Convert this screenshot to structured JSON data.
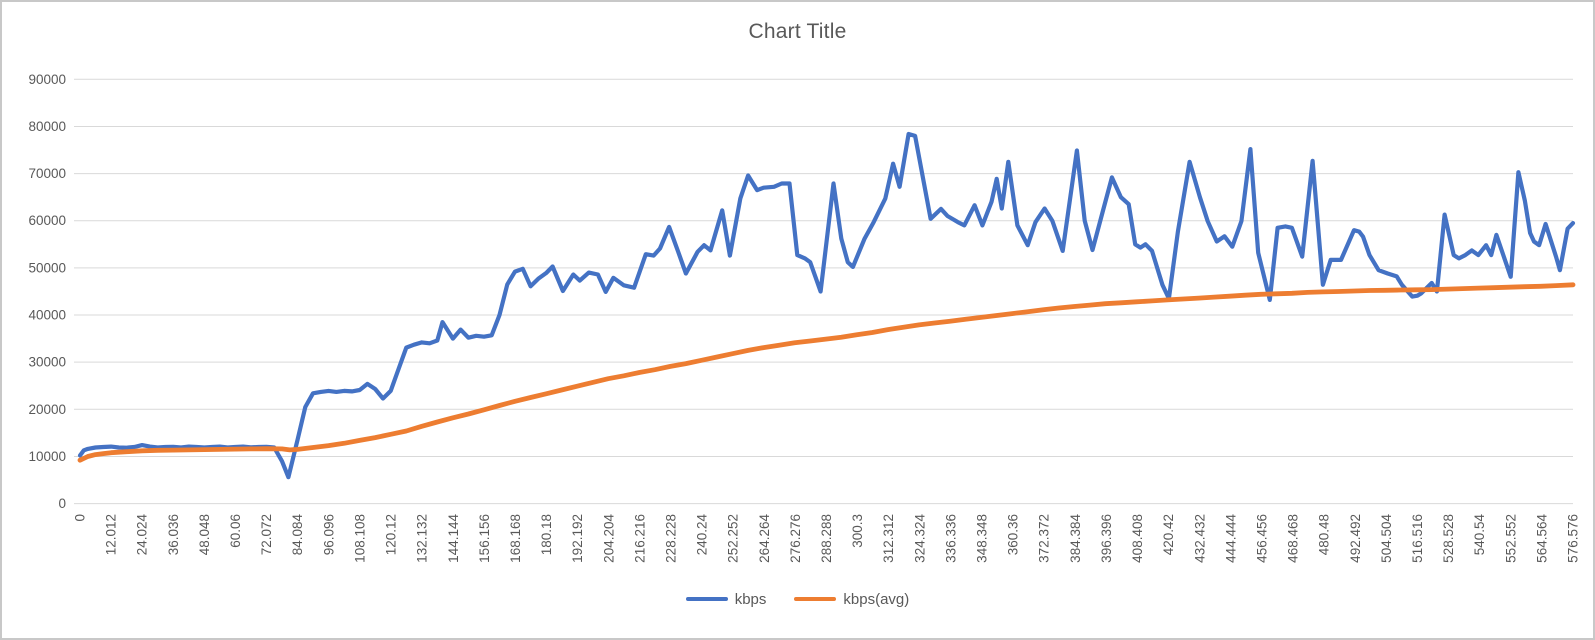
{
  "window": {
    "title": "Chart Title"
  },
  "colors": {
    "series_kbps": "#4472C4",
    "series_kbps_avg": "#ED7D31",
    "gridline": "#D9D9D9",
    "axis_text": "#595959",
    "title_text": "#595959",
    "frame_border": "#C8C8C8",
    "background": "#FFFFFF"
  },
  "chart_data": {
    "type": "line",
    "title": "Chart Title",
    "xlabel": "",
    "ylabel": "",
    "grid": "horizontal",
    "legend_position": "bottom",
    "x_range": [
      0,
      576.576
    ],
    "ylim": [
      0,
      90000
    ],
    "y_ticks": [
      0,
      10000,
      20000,
      30000,
      40000,
      50000,
      60000,
      70000,
      80000,
      90000
    ],
    "x_tick_labels": [
      "0",
      "12.012",
      "24.024",
      "36.036",
      "48.048",
      "60.06",
      "72.072",
      "84.084",
      "96.096",
      "108.108",
      "120.12",
      "132.132",
      "144.144",
      "156.156",
      "168.168",
      "180.18",
      "192.192",
      "204.204",
      "216.216",
      "228.228",
      "240.24",
      "252.252",
      "264.264",
      "276.276",
      "288.288",
      "300.3",
      "312.312",
      "324.324",
      "336.336",
      "348.348",
      "360.36",
      "372.372",
      "384.384",
      "396.396",
      "408.408",
      "420.42",
      "432.432",
      "444.444",
      "456.456",
      "468.468",
      "480.48",
      "492.492",
      "504.504",
      "516.516",
      "528.528",
      "540.54",
      "552.552",
      "564.564",
      "576.576"
    ],
    "series": [
      {
        "name": "kbps",
        "color": "#4472C4",
        "points": [
          [
            0,
            10200
          ],
          [
            1.5,
            11300
          ],
          [
            3,
            11600
          ],
          [
            6,
            11900
          ],
          [
            9,
            12000
          ],
          [
            12,
            12100
          ],
          [
            15,
            11900
          ],
          [
            18,
            11850
          ],
          [
            21,
            12000
          ],
          [
            24,
            12400
          ],
          [
            27,
            12100
          ],
          [
            30,
            11900
          ],
          [
            33,
            12000
          ],
          [
            36,
            12050
          ],
          [
            39,
            11900
          ],
          [
            42,
            12100
          ],
          [
            45,
            12000
          ],
          [
            48,
            11900
          ],
          [
            51,
            12000
          ],
          [
            54,
            12100
          ],
          [
            57,
            11900
          ],
          [
            60,
            12000
          ],
          [
            63,
            12100
          ],
          [
            66,
            11950
          ],
          [
            69,
            12000
          ],
          [
            72,
            12050
          ],
          [
            75,
            11900
          ],
          [
            78,
            9000
          ],
          [
            80.5,
            5600
          ],
          [
            84,
            13500
          ],
          [
            87,
            20500
          ],
          [
            90,
            23400
          ],
          [
            93,
            23700
          ],
          [
            96,
            23900
          ],
          [
            99,
            23700
          ],
          [
            102,
            23900
          ],
          [
            105,
            23800
          ],
          [
            108,
            24100
          ],
          [
            111,
            25400
          ],
          [
            114,
            24300
          ],
          [
            117,
            22300
          ],
          [
            120,
            23900
          ],
          [
            123,
            28500
          ],
          [
            126,
            33100
          ],
          [
            129,
            33700
          ],
          [
            132,
            34200
          ],
          [
            135,
            34000
          ],
          [
            138,
            34600
          ],
          [
            140,
            38500
          ],
          [
            144,
            35000
          ],
          [
            147,
            36900
          ],
          [
            150,
            35200
          ],
          [
            153,
            35600
          ],
          [
            156,
            35400
          ],
          [
            159,
            35700
          ],
          [
            162,
            40000
          ],
          [
            165,
            46500
          ],
          [
            168,
            49200
          ],
          [
            171,
            49800
          ],
          [
            174,
            46100
          ],
          [
            177,
            47700
          ],
          [
            180,
            48900
          ],
          [
            182.5,
            50300
          ],
          [
            186.5,
            45100
          ],
          [
            190.5,
            48600
          ],
          [
            193,
            47300
          ],
          [
            196.5,
            49000
          ],
          [
            200,
            48600
          ],
          [
            203,
            44900
          ],
          [
            206,
            47900
          ],
          [
            210,
            46300
          ],
          [
            214,
            45800
          ],
          [
            218.5,
            52900
          ],
          [
            221.5,
            52600
          ],
          [
            224,
            54100
          ],
          [
            227.5,
            58700
          ],
          [
            231,
            53400
          ],
          [
            234,
            48800
          ],
          [
            238.5,
            53400
          ],
          [
            241,
            54800
          ],
          [
            243.5,
            53700
          ],
          [
            248,
            62200
          ],
          [
            251,
            52600
          ],
          [
            255,
            64700
          ],
          [
            258,
            69600
          ],
          [
            261.5,
            66500
          ],
          [
            264,
            67000
          ],
          [
            268,
            67200
          ],
          [
            271,
            67900
          ],
          [
            274,
            67900
          ],
          [
            277,
            52700
          ],
          [
            280,
            52000
          ],
          [
            282,
            51200
          ],
          [
            284,
            48100
          ],
          [
            286,
            45000
          ],
          [
            291,
            67900
          ],
          [
            294,
            56200
          ],
          [
            296.5,
            51200
          ],
          [
            298.5,
            50200
          ],
          [
            303,
            56200
          ],
          [
            306.5,
            59700
          ],
          [
            311,
            64700
          ],
          [
            314,
            72100
          ],
          [
            316.5,
            67200
          ],
          [
            320,
            78400
          ],
          [
            322.5,
            78000
          ],
          [
            328.5,
            60400
          ],
          [
            332.5,
            62500
          ],
          [
            335,
            61000
          ],
          [
            339,
            59700
          ],
          [
            341.5,
            59000
          ],
          [
            345.5,
            63300
          ],
          [
            348.5,
            59000
          ],
          [
            352,
            64000
          ],
          [
            354,
            68900
          ],
          [
            356,
            62600
          ],
          [
            358.5,
            72500
          ],
          [
            362,
            59000
          ],
          [
            366,
            54800
          ],
          [
            369,
            59700
          ],
          [
            372.5,
            62600
          ],
          [
            375.5,
            60000
          ],
          [
            379.5,
            53600
          ],
          [
            385,
            74900
          ],
          [
            388,
            60000
          ],
          [
            391,
            53800
          ],
          [
            395,
            62000
          ],
          [
            398.5,
            69200
          ],
          [
            402,
            65000
          ],
          [
            405,
            63500
          ],
          [
            407.5,
            55000
          ],
          [
            409.5,
            54300
          ],
          [
            411.5,
            55000
          ],
          [
            414,
            53600
          ],
          [
            418,
            46400
          ],
          [
            420.5,
            43500
          ],
          [
            424,
            57700
          ],
          [
            428.5,
            72500
          ],
          [
            432.5,
            65000
          ],
          [
            435.5,
            59900
          ],
          [
            439,
            55600
          ],
          [
            442,
            56700
          ],
          [
            445,
            54500
          ],
          [
            448.5,
            59900
          ],
          [
            452,
            75200
          ],
          [
            455,
            53200
          ],
          [
            459.5,
            43200
          ],
          [
            462.5,
            58500
          ],
          [
            465.5,
            58800
          ],
          [
            468,
            58500
          ],
          [
            472,
            52400
          ],
          [
            476,
            72700
          ],
          [
            480,
            46400
          ],
          [
            483,
            51700
          ],
          [
            487,
            51700
          ],
          [
            492,
            58000
          ],
          [
            494,
            57700
          ],
          [
            495.5,
            56600
          ],
          [
            498,
            52700
          ],
          [
            501.5,
            49500
          ],
          [
            505,
            48800
          ],
          [
            508.5,
            48200
          ],
          [
            510.5,
            46400
          ],
          [
            514.5,
            43900
          ],
          [
            516.5,
            44100
          ],
          [
            518,
            44600
          ],
          [
            522,
            46800
          ],
          [
            524,
            45000
          ],
          [
            527,
            61300
          ],
          [
            530.5,
            52700
          ],
          [
            532.5,
            52000
          ],
          [
            535,
            52700
          ],
          [
            537.5,
            53700
          ],
          [
            540,
            52700
          ],
          [
            543,
            54800
          ],
          [
            545,
            52700
          ],
          [
            547,
            57000
          ],
          [
            552.5,
            48100
          ],
          [
            555.5,
            70300
          ],
          [
            558,
            64200
          ],
          [
            560,
            57400
          ],
          [
            561.5,
            55600
          ],
          [
            563.5,
            54800
          ],
          [
            566,
            59300
          ],
          [
            570,
            52400
          ],
          [
            571.5,
            49500
          ],
          [
            574.5,
            58300
          ],
          [
            576.576,
            59500
          ]
        ]
      },
      {
        "name": "kbps(avg)",
        "color": "#ED7D31",
        "points": [
          [
            0,
            9200
          ],
          [
            3,
            10000
          ],
          [
            6,
            10400
          ],
          [
            9,
            10600
          ],
          [
            12,
            10800
          ],
          [
            18,
            11000
          ],
          [
            24,
            11200
          ],
          [
            30,
            11300
          ],
          [
            36,
            11350
          ],
          [
            42,
            11400
          ],
          [
            48,
            11450
          ],
          [
            54,
            11500
          ],
          [
            60,
            11550
          ],
          [
            66,
            11600
          ],
          [
            72,
            11650
          ],
          [
            78,
            11600
          ],
          [
            81,
            11400
          ],
          [
            84,
            11500
          ],
          [
            90,
            11900
          ],
          [
            96,
            12300
          ],
          [
            102,
            12800
          ],
          [
            108,
            13400
          ],
          [
            114,
            14000
          ],
          [
            120,
            14700
          ],
          [
            126,
            15400
          ],
          [
            132,
            16400
          ],
          [
            138,
            17300
          ],
          [
            144,
            18200
          ],
          [
            150,
            19000
          ],
          [
            156,
            19900
          ],
          [
            162,
            20800
          ],
          [
            168,
            21700
          ],
          [
            174,
            22500
          ],
          [
            180,
            23300
          ],
          [
            186,
            24100
          ],
          [
            192,
            24900
          ],
          [
            198,
            25700
          ],
          [
            204,
            26500
          ],
          [
            210,
            27100
          ],
          [
            216,
            27800
          ],
          [
            222,
            28400
          ],
          [
            228,
            29100
          ],
          [
            234,
            29700
          ],
          [
            240,
            30400
          ],
          [
            246,
            31100
          ],
          [
            252,
            31800
          ],
          [
            258,
            32500
          ],
          [
            264,
            33100
          ],
          [
            270,
            33600
          ],
          [
            276,
            34100
          ],
          [
            282,
            34500
          ],
          [
            288,
            34900
          ],
          [
            294,
            35300
          ],
          [
            300,
            35800
          ],
          [
            306,
            36300
          ],
          [
            312,
            36900
          ],
          [
            318,
            37400
          ],
          [
            324,
            37900
          ],
          [
            330,
            38300
          ],
          [
            336,
            38700
          ],
          [
            342,
            39100
          ],
          [
            348,
            39500
          ],
          [
            354,
            39900
          ],
          [
            360,
            40300
          ],
          [
            366,
            40700
          ],
          [
            372,
            41100
          ],
          [
            378,
            41500
          ],
          [
            384,
            41800
          ],
          [
            390,
            42100
          ],
          [
            396,
            42400
          ],
          [
            402,
            42600
          ],
          [
            408,
            42800
          ],
          [
            414,
            43000
          ],
          [
            420,
            43200
          ],
          [
            426,
            43400
          ],
          [
            432,
            43600
          ],
          [
            438,
            43800
          ],
          [
            444,
            44000
          ],
          [
            450,
            44200
          ],
          [
            456,
            44400
          ],
          [
            462,
            44500
          ],
          [
            468,
            44600
          ],
          [
            474,
            44800
          ],
          [
            480,
            44900
          ],
          [
            486,
            45000
          ],
          [
            492,
            45100
          ],
          [
            498,
            45200
          ],
          [
            504,
            45250
          ],
          [
            510,
            45300
          ],
          [
            516,
            45350
          ],
          [
            522,
            45400
          ],
          [
            528,
            45500
          ],
          [
            534,
            45600
          ],
          [
            540,
            45700
          ],
          [
            546,
            45800
          ],
          [
            552,
            45900
          ],
          [
            558,
            46000
          ],
          [
            564,
            46100
          ],
          [
            570,
            46250
          ],
          [
            576.576,
            46400
          ]
        ]
      }
    ]
  }
}
